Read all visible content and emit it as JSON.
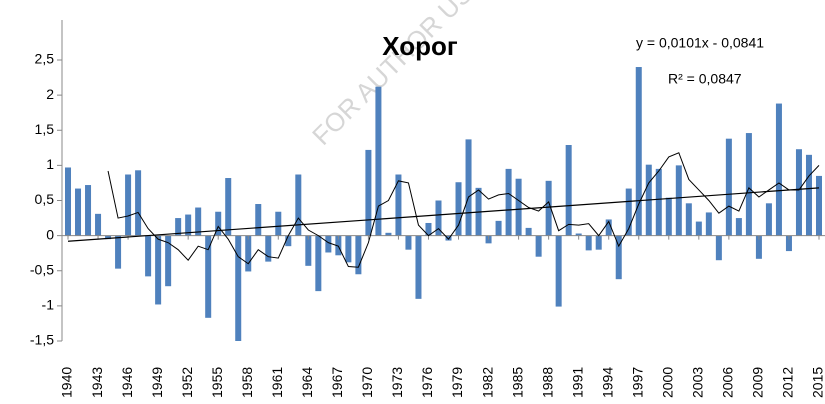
{
  "chart_data": {
    "type": "bar",
    "title": "Хорог",
    "annotations": [
      "y = 0,0101x - 0,0841",
      "R² = 0,0847"
    ],
    "watermark": "FOR AUTHOR USE",
    "x": [
      1940,
      1941,
      1942,
      1943,
      1944,
      1945,
      1946,
      1947,
      1948,
      1949,
      1950,
      1951,
      1952,
      1953,
      1954,
      1955,
      1956,
      1957,
      1958,
      1959,
      1960,
      1961,
      1962,
      1963,
      1964,
      1965,
      1966,
      1967,
      1968,
      1969,
      1970,
      1971,
      1972,
      1973,
      1974,
      1975,
      1976,
      1977,
      1978,
      1979,
      1980,
      1981,
      1982,
      1983,
      1984,
      1985,
      1986,
      1987,
      1988,
      1989,
      1990,
      1991,
      1992,
      1993,
      1994,
      1995,
      1996,
      1997,
      1998,
      1999,
      2000,
      2001,
      2002,
      2003,
      2004,
      2005,
      2006,
      2007,
      2008,
      2009,
      2010,
      2011,
      2012,
      2013,
      2014,
      2015
    ],
    "series": [
      {
        "color": "#4f81bd",
        "values": [
          0.97,
          0.67,
          0.72,
          0.31,
          -0.05,
          -0.47,
          0.87,
          0.93,
          -0.58,
          -0.98,
          -0.72,
          0.25,
          0.3,
          0.4,
          -1.17,
          0.34,
          0.82,
          -1.5,
          -0.51,
          0.45,
          -0.37,
          0.34,
          -0.15,
          0.87,
          -0.43,
          -0.79,
          -0.24,
          -0.28,
          -0.38,
          -0.55,
          1.22,
          2.12,
          0.04,
          0.87,
          -0.2,
          -0.9,
          0.18,
          0.5,
          -0.07,
          0.76,
          1.37,
          0.68,
          -0.11,
          0.21,
          0.95,
          0.81,
          0.11,
          -0.3,
          0.78,
          -1.01,
          1.29,
          0.03,
          -0.21,
          -0.2,
          0.23,
          -0.62,
          0.67,
          2.4,
          1.01,
          0.95,
          0.54,
          1.0,
          0.46,
          0.2,
          0.33,
          -0.35,
          1.38,
          0.25,
          1.46,
          -0.33,
          0.46,
          1.88,
          -0.22,
          1.23,
          1.15,
          0.85
        ]
      },
      {
        "type": "line",
        "color": "#000000",
        "values": [
          null,
          null,
          null,
          null,
          0.92,
          0.25,
          0.28,
          0.33,
          0.1,
          -0.05,
          -0.1,
          -0.2,
          -0.35,
          -0.15,
          -0.2,
          0.13,
          -0.05,
          -0.3,
          -0.4,
          -0.2,
          -0.3,
          -0.32,
          0.0,
          0.25,
          0.08,
          0.0,
          -0.1,
          -0.15,
          -0.44,
          -0.45,
          -0.1,
          0.42,
          0.5,
          0.78,
          0.75,
          0.15,
          0.0,
          0.1,
          -0.05,
          0.15,
          0.55,
          0.65,
          0.52,
          0.58,
          0.6,
          0.5,
          0.4,
          0.35,
          0.48,
          0.07,
          0.16,
          0.15,
          0.17,
          0.0,
          0.2,
          -0.15,
          0.1,
          0.45,
          0.75,
          0.92,
          1.12,
          1.18,
          0.8,
          0.65,
          0.5,
          0.32,
          0.42,
          0.35,
          0.68,
          0.55,
          0.65,
          0.75,
          0.65,
          0.65,
          0.85,
          1.0
        ]
      }
    ],
    "trend": {
      "color": "#000000",
      "x": [
        1940,
        2015
      ],
      "values": [
        -0.08,
        0.68
      ]
    },
    "xlim": [
      1939.4,
      2015.6
    ],
    "xticks": [
      1940,
      1943,
      1946,
      1949,
      1952,
      1955,
      1958,
      1961,
      1964,
      1967,
      1970,
      1973,
      1976,
      1979,
      1982,
      1985,
      1988,
      1991,
      1994,
      1997,
      2000,
      2003,
      2006,
      2009,
      2012,
      2015
    ],
    "ylim": [
      -1.5,
      2.5
    ],
    "yticks": [
      {
        "value": -1.5,
        "label": "-1,5"
      },
      -1,
      {
        "value": -0.5,
        "label": "-0,5"
      },
      0,
      {
        "value": 0.5,
        "label": "0,5"
      },
      1,
      {
        "value": 1.5,
        "label": "1,5"
      },
      2,
      {
        "value": 2.5,
        "label": "2,5"
      }
    ]
  }
}
